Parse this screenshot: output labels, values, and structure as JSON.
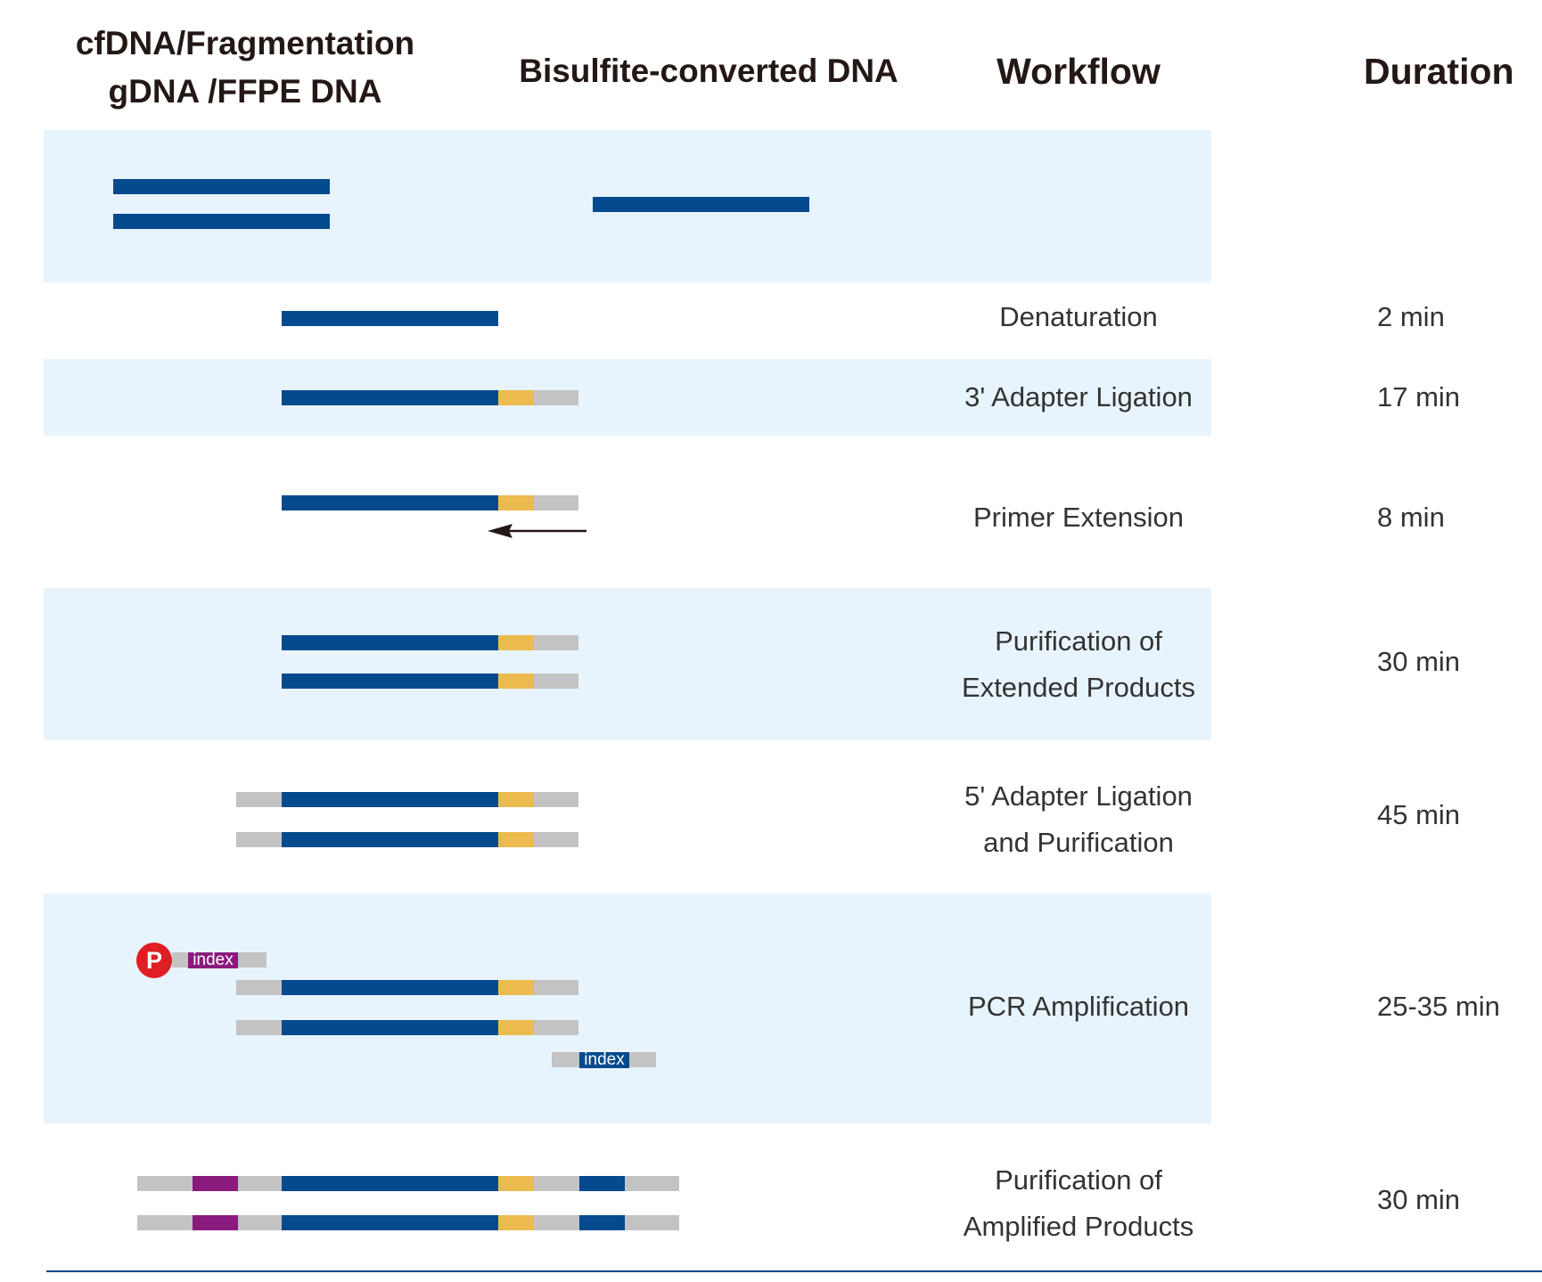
{
  "headers": {
    "col1_line1": "cfDNA/Fragmentation",
    "col1_line2": "gDNA /FFPE DNA",
    "col2": "Bisulfite-converted DNA",
    "col3": "Workflow",
    "col4": "Duration"
  },
  "steps": [
    {
      "name": "Denaturation",
      "duration": "2 min"
    },
    {
      "name": "3' Adapter Ligation",
      "duration": "17 min"
    },
    {
      "name": "Primer Extension",
      "duration": "8 min"
    },
    {
      "name_line1": "Purification of",
      "name_line2": "Extended Products",
      "duration": "30 min"
    },
    {
      "name_line1": "5' Adapter Ligation",
      "name_line2": "and Purification",
      "duration": "45 min"
    },
    {
      "name": "PCR Amplification",
      "duration": "25-35 min"
    },
    {
      "name_line1": "Purification of",
      "name_line2": "Amplified Products",
      "duration": "30 min"
    }
  ],
  "labels": {
    "phosphate": "P",
    "index_top": "index",
    "index_bottom": "index"
  },
  "colors": {
    "insert": "#034a8e",
    "adapter3": "#ebbb4f",
    "adapter": "#c3c3c3",
    "index_i7": "#8a1a7e",
    "band": "#e8f4fd",
    "phosphate": "#e01e25"
  }
}
